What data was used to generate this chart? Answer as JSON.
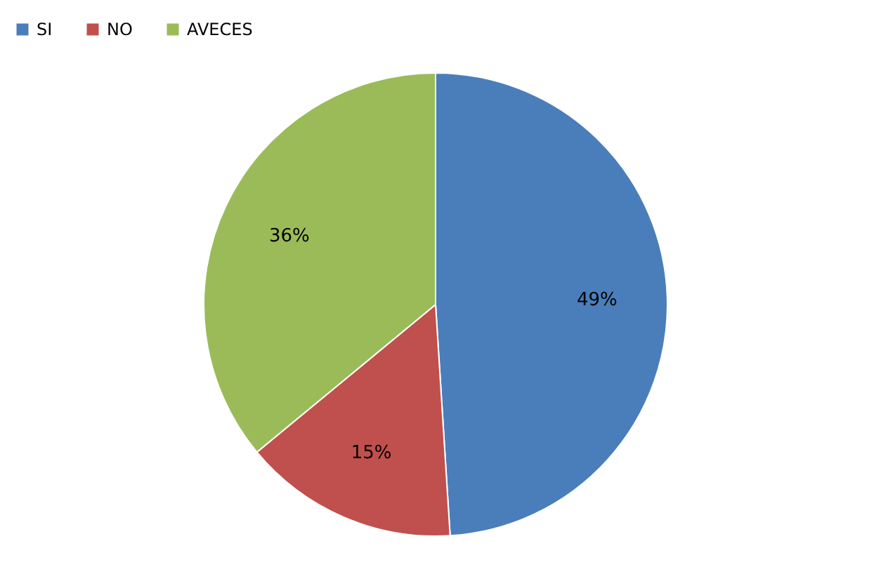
{
  "chart_data": {
    "type": "pie",
    "categories": [
      "SI",
      "NO",
      "AVECES"
    ],
    "values": [
      49,
      15,
      36
    ],
    "colors": [
      "#4a7ebb",
      "#c0504d",
      "#9bbb59"
    ],
    "value_labels": [
      "49%",
      "15%",
      "36%"
    ],
    "legend": "top"
  }
}
